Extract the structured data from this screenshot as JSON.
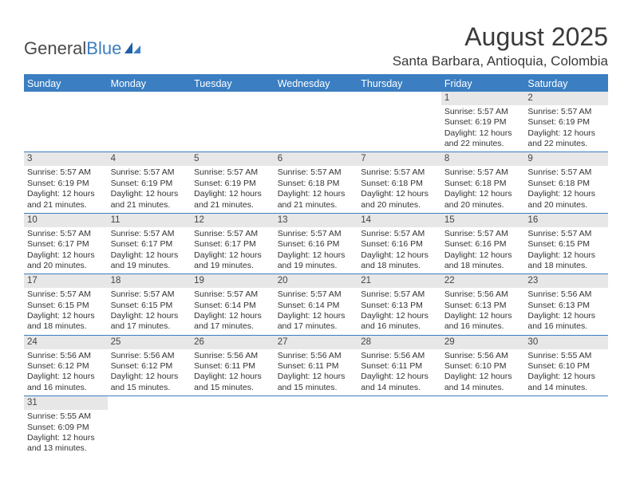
{
  "brand": {
    "general": "General",
    "blue": "Blue"
  },
  "title": "August 2025",
  "location": "Santa Barbara, Antioquia, Colombia",
  "colors": {
    "header_blue": "#3b7ec2",
    "stripe_gray": "#e7e7e7",
    "text": "#333333"
  },
  "dow": [
    "Sunday",
    "Monday",
    "Tuesday",
    "Wednesday",
    "Thursday",
    "Friday",
    "Saturday"
  ],
  "weeks": [
    [
      null,
      null,
      null,
      null,
      null,
      {
        "day": "1",
        "sunrise": "5:57 AM",
        "sunset": "6:19 PM",
        "daylight": "12 hours and 22 minutes."
      },
      {
        "day": "2",
        "sunrise": "5:57 AM",
        "sunset": "6:19 PM",
        "daylight": "12 hours and 22 minutes."
      }
    ],
    [
      {
        "day": "3",
        "sunrise": "5:57 AM",
        "sunset": "6:19 PM",
        "daylight": "12 hours and 21 minutes."
      },
      {
        "day": "4",
        "sunrise": "5:57 AM",
        "sunset": "6:19 PM",
        "daylight": "12 hours and 21 minutes."
      },
      {
        "day": "5",
        "sunrise": "5:57 AM",
        "sunset": "6:19 PM",
        "daylight": "12 hours and 21 minutes."
      },
      {
        "day": "6",
        "sunrise": "5:57 AM",
        "sunset": "6:18 PM",
        "daylight": "12 hours and 21 minutes."
      },
      {
        "day": "7",
        "sunrise": "5:57 AM",
        "sunset": "6:18 PM",
        "daylight": "12 hours and 20 minutes."
      },
      {
        "day": "8",
        "sunrise": "5:57 AM",
        "sunset": "6:18 PM",
        "daylight": "12 hours and 20 minutes."
      },
      {
        "day": "9",
        "sunrise": "5:57 AM",
        "sunset": "6:18 PM",
        "daylight": "12 hours and 20 minutes."
      }
    ],
    [
      {
        "day": "10",
        "sunrise": "5:57 AM",
        "sunset": "6:17 PM",
        "daylight": "12 hours and 20 minutes."
      },
      {
        "day": "11",
        "sunrise": "5:57 AM",
        "sunset": "6:17 PM",
        "daylight": "12 hours and 19 minutes."
      },
      {
        "day": "12",
        "sunrise": "5:57 AM",
        "sunset": "6:17 PM",
        "daylight": "12 hours and 19 minutes."
      },
      {
        "day": "13",
        "sunrise": "5:57 AM",
        "sunset": "6:16 PM",
        "daylight": "12 hours and 19 minutes."
      },
      {
        "day": "14",
        "sunrise": "5:57 AM",
        "sunset": "6:16 PM",
        "daylight": "12 hours and 18 minutes."
      },
      {
        "day": "15",
        "sunrise": "5:57 AM",
        "sunset": "6:16 PM",
        "daylight": "12 hours and 18 minutes."
      },
      {
        "day": "16",
        "sunrise": "5:57 AM",
        "sunset": "6:15 PM",
        "daylight": "12 hours and 18 minutes."
      }
    ],
    [
      {
        "day": "17",
        "sunrise": "5:57 AM",
        "sunset": "6:15 PM",
        "daylight": "12 hours and 18 minutes."
      },
      {
        "day": "18",
        "sunrise": "5:57 AM",
        "sunset": "6:15 PM",
        "daylight": "12 hours and 17 minutes."
      },
      {
        "day": "19",
        "sunrise": "5:57 AM",
        "sunset": "6:14 PM",
        "daylight": "12 hours and 17 minutes."
      },
      {
        "day": "20",
        "sunrise": "5:57 AM",
        "sunset": "6:14 PM",
        "daylight": "12 hours and 17 minutes."
      },
      {
        "day": "21",
        "sunrise": "5:57 AM",
        "sunset": "6:13 PM",
        "daylight": "12 hours and 16 minutes."
      },
      {
        "day": "22",
        "sunrise": "5:56 AM",
        "sunset": "6:13 PM",
        "daylight": "12 hours and 16 minutes."
      },
      {
        "day": "23",
        "sunrise": "5:56 AM",
        "sunset": "6:13 PM",
        "daylight": "12 hours and 16 minutes."
      }
    ],
    [
      {
        "day": "24",
        "sunrise": "5:56 AM",
        "sunset": "6:12 PM",
        "daylight": "12 hours and 16 minutes."
      },
      {
        "day": "25",
        "sunrise": "5:56 AM",
        "sunset": "6:12 PM",
        "daylight": "12 hours and 15 minutes."
      },
      {
        "day": "26",
        "sunrise": "5:56 AM",
        "sunset": "6:11 PM",
        "daylight": "12 hours and 15 minutes."
      },
      {
        "day": "27",
        "sunrise": "5:56 AM",
        "sunset": "6:11 PM",
        "daylight": "12 hours and 15 minutes."
      },
      {
        "day": "28",
        "sunrise": "5:56 AM",
        "sunset": "6:11 PM",
        "daylight": "12 hours and 14 minutes."
      },
      {
        "day": "29",
        "sunrise": "5:56 AM",
        "sunset": "6:10 PM",
        "daylight": "12 hours and 14 minutes."
      },
      {
        "day": "30",
        "sunrise": "5:55 AM",
        "sunset": "6:10 PM",
        "daylight": "12 hours and 14 minutes."
      }
    ],
    [
      {
        "day": "31",
        "sunrise": "5:55 AM",
        "sunset": "6:09 PM",
        "daylight": "12 hours and 13 minutes."
      },
      null,
      null,
      null,
      null,
      null,
      null
    ]
  ],
  "labels": {
    "sunrise": "Sunrise:",
    "sunset": "Sunset:",
    "daylight": "Daylight:"
  }
}
